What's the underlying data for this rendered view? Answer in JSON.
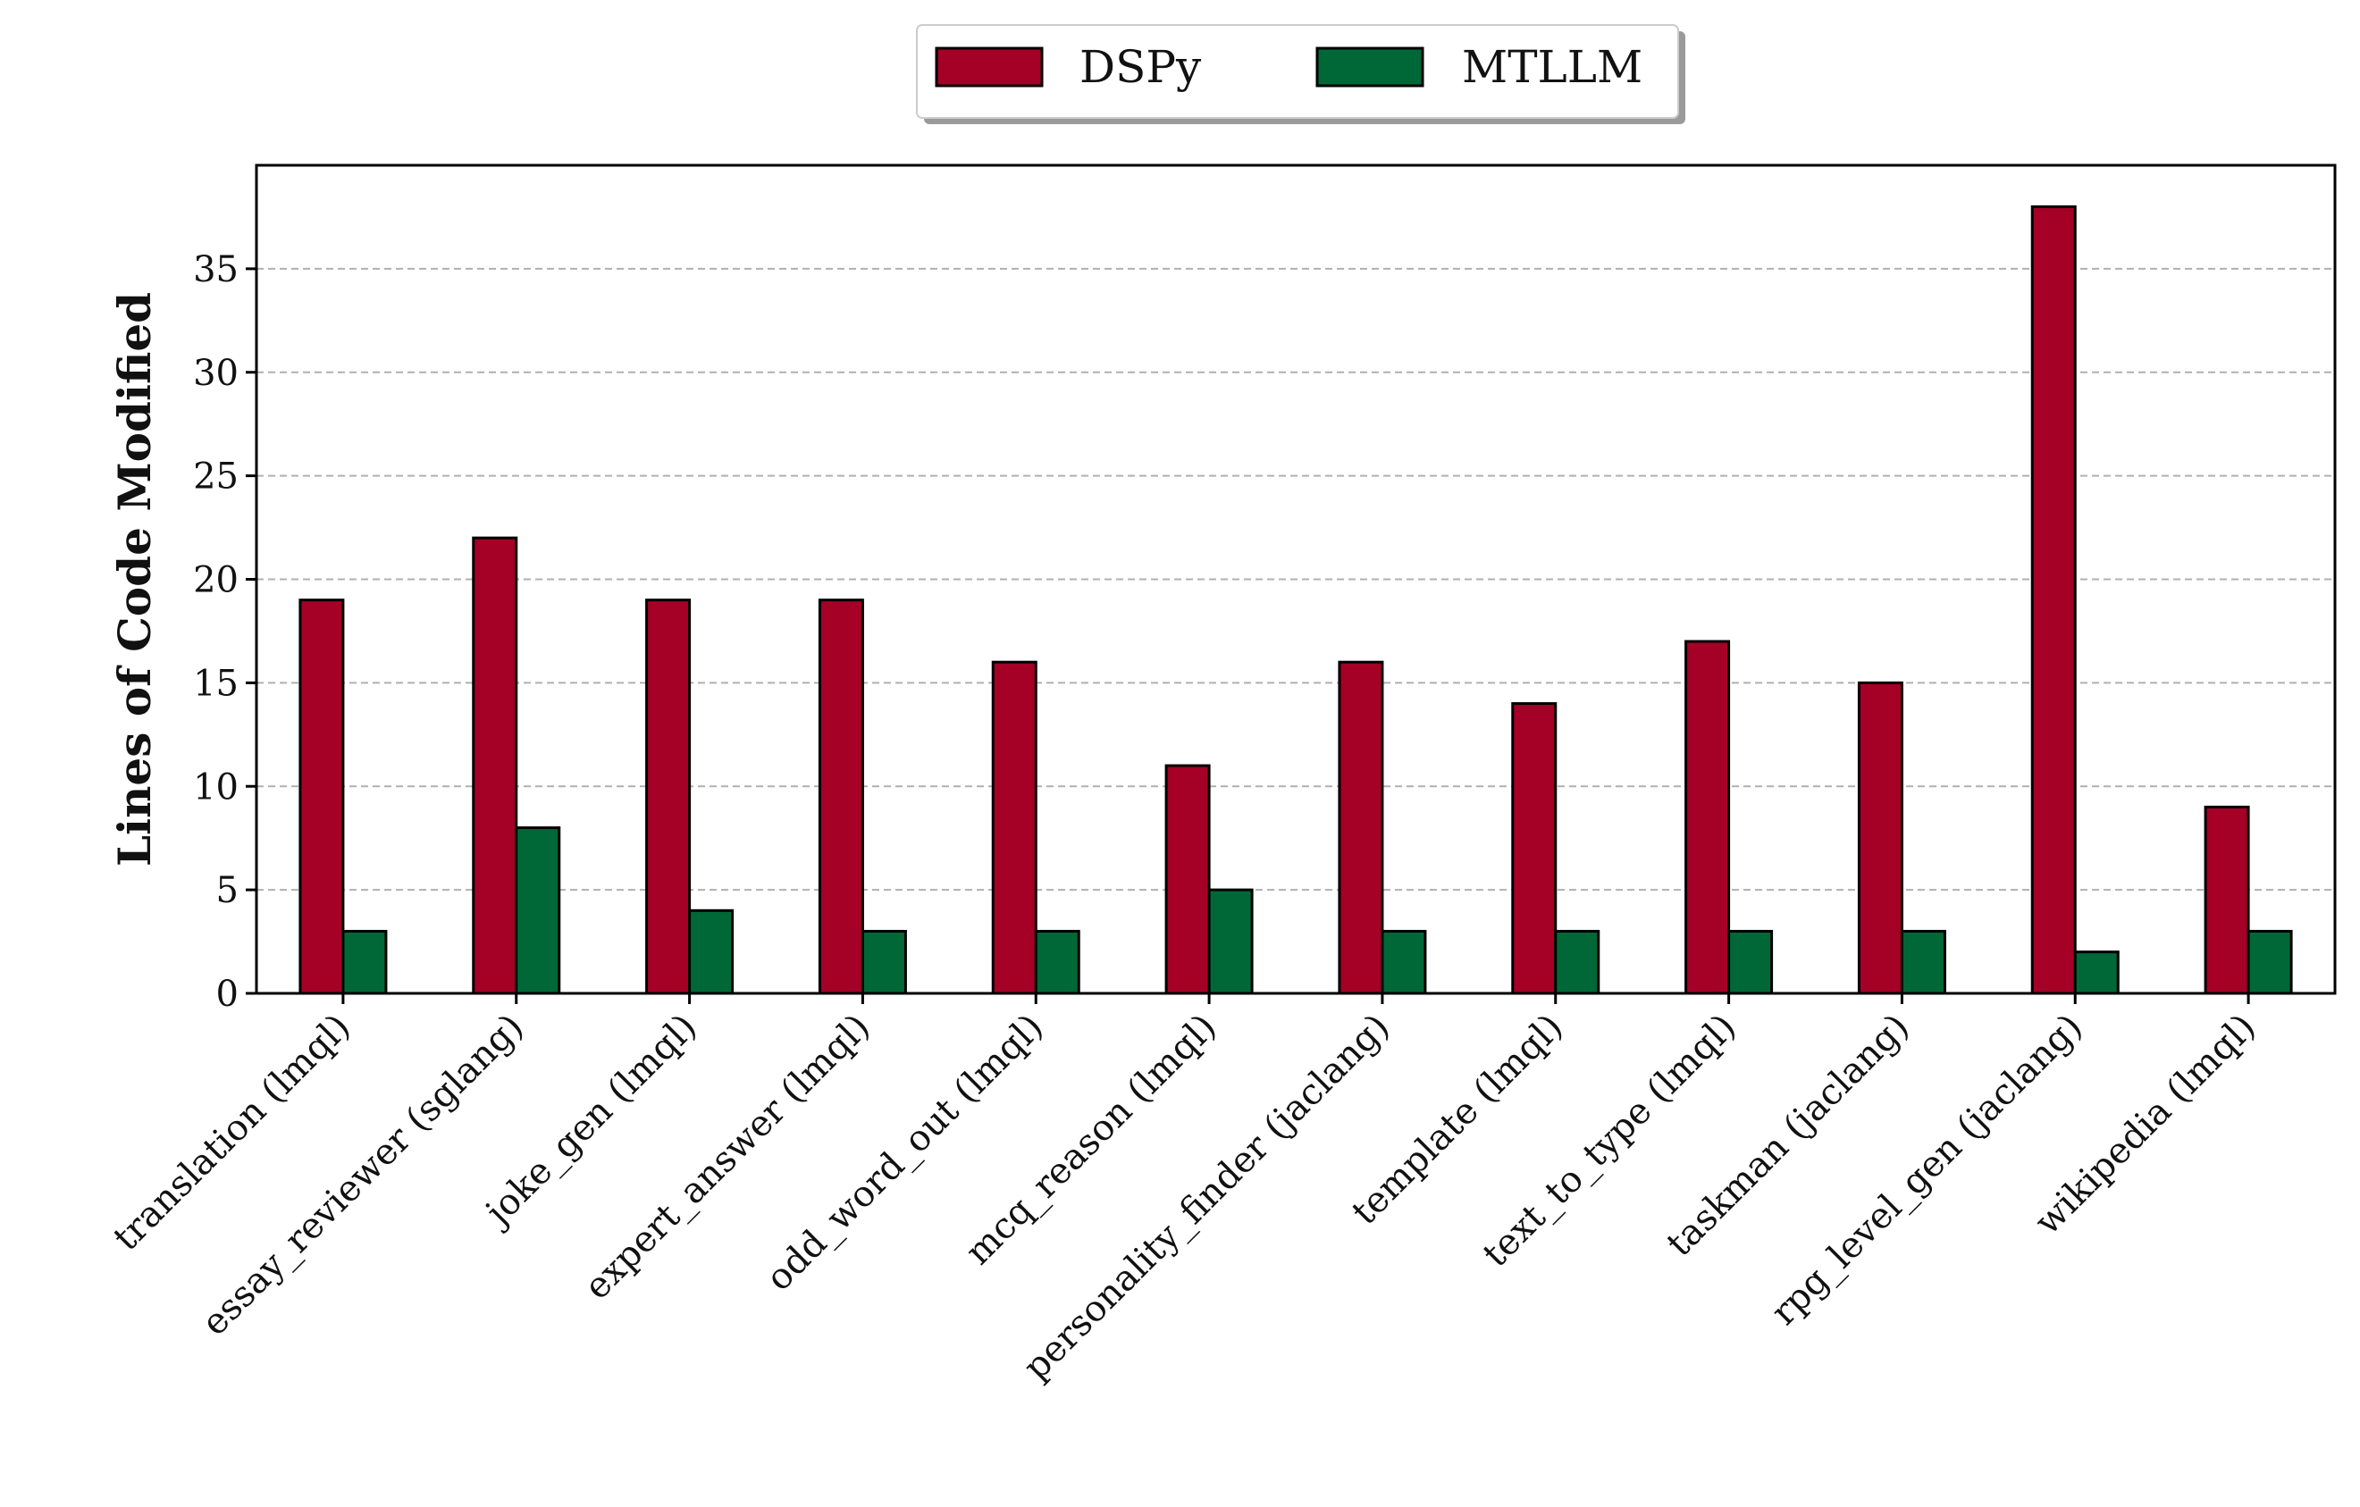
{
  "chart_data": {
    "type": "bar",
    "categories": [
      "translation (lmql)",
      "essay_reviewer (sglang)",
      "joke_gen (lmql)",
      "expert_answer (lmql)",
      "odd_word_out (lmql)",
      "mcq_reason (lmql)",
      "personality_finder (jaclang)",
      "template (lmql)",
      "text_to_type (lmql)",
      "taskman (jaclang)",
      "rpg_level_gen (jaclang)",
      "wikipedia (lmql)"
    ],
    "series": [
      {
        "name": "DSPy",
        "color": "#a50026",
        "values": [
          19,
          22,
          19,
          19,
          16,
          11,
          16,
          14,
          17,
          15,
          38,
          9
        ]
      },
      {
        "name": "MTLLM",
        "color": "#006837",
        "values": [
          3,
          8,
          4,
          3,
          3,
          5,
          3,
          3,
          3,
          3,
          2,
          3
        ]
      }
    ],
    "ylabel": "Lines of Code Modified",
    "xlabel": "",
    "ylim": [
      0,
      40
    ],
    "yticks": [
      0,
      5,
      10,
      15,
      20,
      25,
      30,
      35
    ],
    "grid": "y-dashed",
    "legend_position": "top-center"
  }
}
